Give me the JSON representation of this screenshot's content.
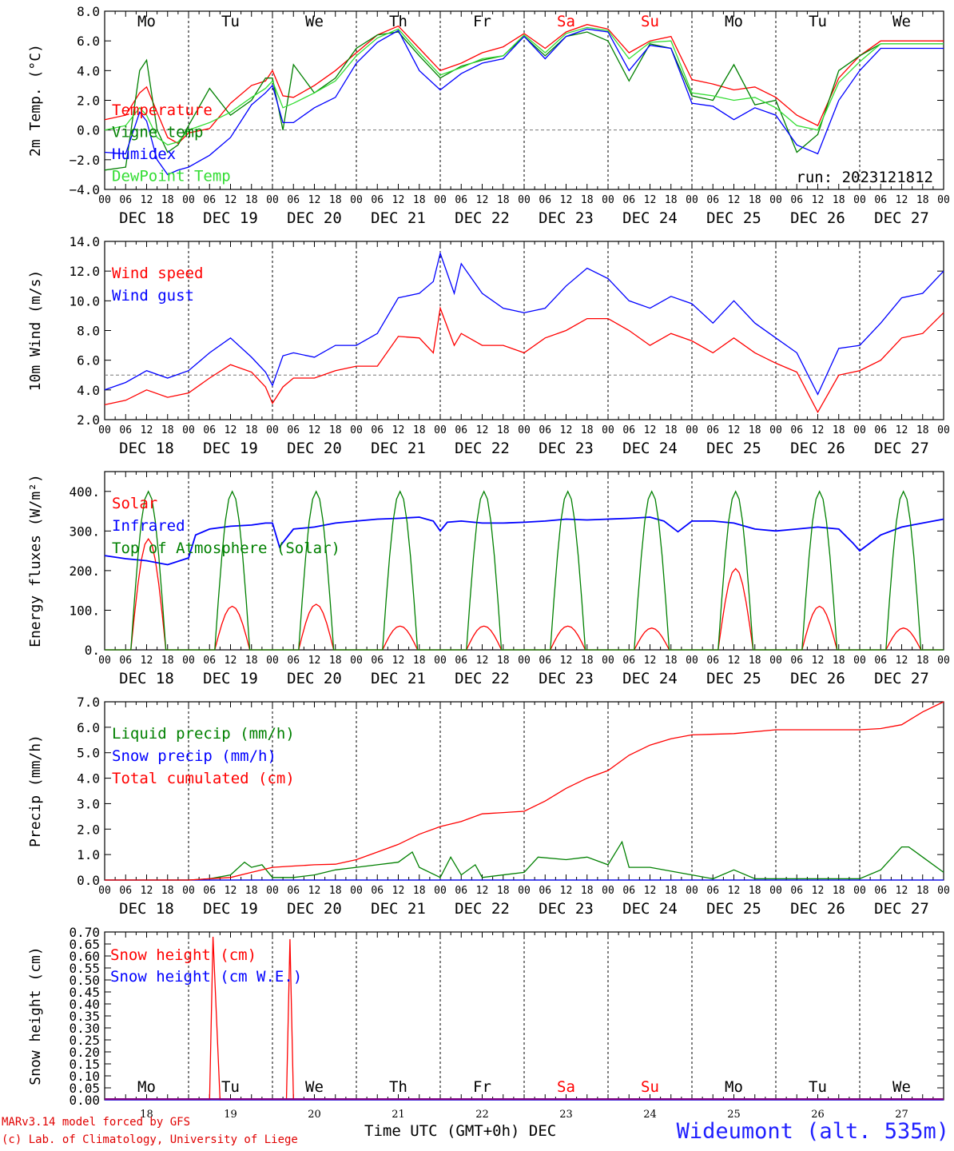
{
  "colors": {
    "red": "#ff0000",
    "green": "#008000",
    "blue": "#0000ff",
    "lightgreen": "#33dd33",
    "purple": "#800080"
  },
  "days": [
    {
      "abbr": "Mo",
      "date": "DEC 18",
      "num": "18",
      "weekend": false
    },
    {
      "abbr": "Tu",
      "date": "DEC 19",
      "num": "19",
      "weekend": false
    },
    {
      "abbr": "We",
      "date": "DEC 20",
      "num": "20",
      "weekend": false
    },
    {
      "abbr": "Th",
      "date": "DEC 21",
      "num": "21",
      "weekend": false
    },
    {
      "abbr": "Fr",
      "date": "DEC 22",
      "num": "22",
      "weekend": false
    },
    {
      "abbr": "Sa",
      "date": "DEC 23",
      "num": "23",
      "weekend": true
    },
    {
      "abbr": "Su",
      "date": "DEC 24",
      "num": "24",
      "weekend": true
    },
    {
      "abbr": "Mo",
      "date": "DEC 25",
      "num": "25",
      "weekend": false
    },
    {
      "abbr": "Tu",
      "date": "DEC 26",
      "num": "26",
      "weekend": false
    },
    {
      "abbr": "We",
      "date": "DEC 27",
      "num": "27",
      "weekend": false
    }
  ],
  "hour_ticks": [
    "00",
    "06",
    "12",
    "18"
  ],
  "final_tick": "00",
  "run_label": "run: 2023121812",
  "footer": {
    "credit_line1": "MARv3.14 model forced by GFS",
    "credit_line2": "(c) Lab. of Climatology, University of Liege",
    "xaxis_title": "Time UTC (GMT+0h) DEC",
    "station": "Wideumont (alt. 535m)"
  },
  "chart_data": [
    {
      "type": "line",
      "ylabel": "2m Temp. (°C)",
      "ylim": [
        -4,
        8
      ],
      "yticks": [
        -4,
        -2,
        0,
        2,
        4,
        6,
        8
      ],
      "ytick_labels": [
        "−4.0",
        "−2.0",
        "0.0",
        "2.0",
        "4.0",
        "6.0",
        "8.0"
      ],
      "ref_line": 0,
      "x_hours": [
        0,
        6,
        10,
        12,
        15,
        18,
        21,
        24,
        30,
        36,
        42,
        46,
        48,
        51,
        54,
        60,
        66,
        72,
        78,
        84,
        90,
        96,
        102,
        108,
        114,
        120,
        126,
        132,
        138,
        144,
        150,
        156,
        162,
        168,
        174,
        180,
        186,
        192,
        198,
        204,
        210,
        216,
        222,
        228,
        231,
        234,
        240
      ],
      "series": [
        {
          "name": "Temperature",
          "color": "red",
          "values": [
            0.7,
            1.0,
            2.5,
            2.9,
            1.2,
            -0.5,
            -0.9,
            -0.2,
            0.1,
            1.8,
            3.0,
            3.3,
            4.0,
            2.3,
            2.2,
            3.0,
            4.0,
            5.2,
            6.4,
            7.0,
            5.5,
            4.0,
            4.5,
            5.2,
            5.6,
            6.5,
            5.5,
            6.6,
            7.1,
            6.8,
            5.2,
            6.0,
            6.3,
            3.4,
            3.1,
            2.7,
            2.9,
            2.2,
            1.0,
            0.3,
            3.5,
            5.0,
            6.0,
            6.0,
            6.0,
            6.0,
            6.0
          ],
          "legend": "Temperature"
        },
        {
          "name": "Vigne temp",
          "color": "green",
          "values": [
            -2.7,
            -2.5,
            4.0,
            4.7,
            0.0,
            -1.5,
            -1.0,
            0.3,
            2.8,
            1.0,
            2.0,
            3.5,
            3.5,
            0.0,
            4.4,
            2.5,
            3.5,
            5.5,
            6.4,
            6.6,
            5.0,
            3.5,
            4.3,
            4.7,
            5.0,
            6.3,
            5.0,
            6.3,
            6.6,
            6.0,
            3.3,
            5.8,
            5.5,
            2.3,
            2.0,
            4.4,
            1.7,
            2.0,
            -1.5,
            -0.3,
            4.0,
            5.0,
            5.8,
            5.8,
            5.8,
            5.8,
            5.8
          ],
          "legend": "Vigne temp"
        },
        {
          "name": "Humidex",
          "color": "blue",
          "values": [
            -1.5,
            -1.6,
            1.2,
            0.6,
            -2.0,
            -3.0,
            -2.7,
            -2.5,
            -1.7,
            -0.5,
            1.7,
            2.5,
            3.0,
            0.5,
            0.5,
            1.5,
            2.2,
            4.5,
            5.9,
            6.7,
            4.0,
            2.7,
            3.8,
            4.5,
            4.8,
            6.3,
            4.8,
            6.3,
            6.8,
            6.6,
            4.0,
            5.7,
            5.5,
            1.8,
            1.6,
            0.7,
            1.5,
            1.0,
            -1.0,
            -1.6,
            2.0,
            4.0,
            5.5,
            5.5,
            5.5,
            5.5,
            5.5
          ],
          "legend": "Humidex"
        },
        {
          "name": "DewPoint Temp",
          "color": "lightgreen",
          "values": [
            0.0,
            0.3,
            1.5,
            1.0,
            -0.5,
            -1.0,
            -0.8,
            0.0,
            0.5,
            1.2,
            2.2,
            2.8,
            3.3,
            1.5,
            1.8,
            2.5,
            3.3,
            5.0,
            6.2,
            6.8,
            5.2,
            3.7,
            4.2,
            4.8,
            5.0,
            6.4,
            5.2,
            6.5,
            6.9,
            6.7,
            4.8,
            5.9,
            6.0,
            2.5,
            2.3,
            2.0,
            2.2,
            1.5,
            0.3,
            0.0,
            3.2,
            4.6,
            5.8,
            5.8,
            5.8,
            5.8,
            5.8
          ],
          "legend": "DewPoint Temp"
        }
      ]
    },
    {
      "type": "line",
      "ylabel": "10m Wind (m/s)",
      "ylim": [
        2,
        14
      ],
      "yticks": [
        2,
        4,
        6,
        8,
        10,
        12,
        14
      ],
      "ytick_labels": [
        "2.0",
        "4.0",
        "6.0",
        "8.0",
        "10.0",
        "12.0",
        "14.0"
      ],
      "ref_line": 5,
      "x_hours": [
        0,
        6,
        12,
        18,
        24,
        30,
        36,
        42,
        46,
        48,
        51,
        54,
        60,
        66,
        72,
        78,
        84,
        90,
        94,
        96,
        100,
        102,
        108,
        114,
        120,
        126,
        132,
        138,
        144,
        150,
        156,
        162,
        168,
        174,
        180,
        186,
        192,
        198,
        204,
        210,
        216,
        222,
        228,
        234,
        240
      ],
      "series": [
        {
          "name": "Wind speed",
          "color": "red",
          "values": [
            3.0,
            3.3,
            4.0,
            3.5,
            3.8,
            4.8,
            5.7,
            5.2,
            4.2,
            3.1,
            4.2,
            4.8,
            4.8,
            5.3,
            5.6,
            5.6,
            7.6,
            7.5,
            6.5,
            9.5,
            7.0,
            7.8,
            7.0,
            7.0,
            6.5,
            7.5,
            8.0,
            8.8,
            8.8,
            8.0,
            7.0,
            7.8,
            7.3,
            6.5,
            7.5,
            6.5,
            5.8,
            5.2,
            2.5,
            5.0,
            5.3,
            6.0,
            7.5,
            7.8,
            9.2
          ],
          "legend": "Wind speed"
        },
        {
          "name": "Wind gust",
          "color": "blue",
          "values": [
            4.0,
            4.5,
            5.3,
            4.8,
            5.3,
            6.5,
            7.5,
            6.2,
            5.2,
            4.3,
            6.3,
            6.5,
            6.2,
            7.0,
            7.0,
            7.8,
            10.2,
            10.5,
            11.3,
            13.2,
            10.5,
            12.5,
            10.5,
            9.5,
            9.2,
            9.5,
            11.0,
            12.2,
            11.5,
            10.0,
            9.5,
            10.3,
            9.8,
            8.5,
            10.0,
            8.5,
            7.5,
            6.5,
            3.7,
            6.8,
            7.0,
            8.5,
            10.2,
            10.5,
            12.0
          ],
          "legend": "Wind gust"
        }
      ]
    },
    {
      "type": "line",
      "ylabel": "Energy fluxes (W/m²)",
      "ylim": [
        0,
        450
      ],
      "yticks": [
        0,
        100,
        200,
        300,
        400
      ],
      "ytick_labels": [
        "0.",
        "100.",
        "200.",
        "300.",
        "400."
      ],
      "diurnal": true,
      "series": [
        {
          "name": "Solar",
          "color": "red",
          "peaks": [
            280,
            110,
            115,
            60,
            60,
            60,
            55,
            205,
            110,
            55
          ],
          "legend": "Solar"
        },
        {
          "name": "Infrared",
          "color": "blue",
          "x_hours": [
            0,
            6,
            12,
            18,
            24,
            26,
            30,
            36,
            42,
            46,
            48,
            50,
            54,
            60,
            66,
            72,
            78,
            84,
            90,
            94,
            96,
            98,
            102,
            108,
            114,
            120,
            126,
            132,
            138,
            144,
            150,
            156,
            160,
            164,
            168,
            174,
            180,
            186,
            192,
            198,
            204,
            210,
            214,
            216,
            222,
            228,
            234,
            240
          ],
          "values": [
            238,
            230,
            225,
            215,
            232,
            290,
            305,
            312,
            315,
            320,
            320,
            260,
            305,
            310,
            320,
            325,
            330,
            332,
            335,
            325,
            300,
            322,
            325,
            320,
            320,
            322,
            325,
            330,
            328,
            330,
            332,
            335,
            325,
            298,
            325,
            325,
            320,
            305,
            300,
            305,
            310,
            305,
            270,
            250,
            290,
            310,
            320,
            330
          ],
          "legend": "Infrared"
        },
        {
          "name": "Top of Atmosphere (Solar)",
          "color": "green",
          "peaks": [
            400,
            400,
            400,
            400,
            400,
            400,
            400,
            400,
            400,
            400
          ],
          "legend": "Top of Atmosphere (Solar)"
        }
      ]
    },
    {
      "type": "line",
      "ylabel": "Precip (mm/h)",
      "ylim": [
        0,
        7
      ],
      "yticks": [
        0,
        1,
        2,
        3,
        4,
        5,
        6,
        7
      ],
      "ytick_labels": [
        "0.0",
        "1.0",
        "2.0",
        "3.0",
        "4.0",
        "5.0",
        "6.0",
        "7.0"
      ],
      "series": [
        {
          "name": "Liquid precip (mm/h)",
          "color": "green",
          "x_hours": [
            0,
            24,
            30,
            36,
            40,
            42,
            45,
            48,
            54,
            60,
            66,
            72,
            78,
            84,
            88,
            90,
            96,
            99,
            102,
            106,
            108,
            120,
            124,
            132,
            138,
            144,
            148,
            150,
            156,
            168,
            174,
            180,
            186,
            192,
            204,
            216,
            222,
            228,
            230,
            234,
            240
          ],
          "values": [
            0,
            0,
            0.05,
            0.2,
            0.7,
            0.5,
            0.6,
            0.1,
            0.1,
            0.2,
            0.4,
            0.5,
            0.6,
            0.7,
            1.1,
            0.5,
            0.1,
            0.9,
            0.2,
            0.6,
            0.1,
            0.3,
            0.9,
            0.8,
            0.9,
            0.6,
            1.5,
            0.5,
            0.5,
            0.2,
            0.05,
            0.4,
            0.05,
            0.05,
            0.05,
            0.05,
            0.4,
            1.3,
            1.3,
            0.9,
            0.3
          ],
          "legend": "Liquid precip (mm/h)"
        },
        {
          "name": "Snow precip (mm/h)",
          "color": "blue",
          "x_hours": [
            0,
            240
          ],
          "values": [
            0,
            0
          ],
          "legend": "Snow precip (mm/h)"
        },
        {
          "name": "Total cumulated (cm)",
          "color": "red",
          "x_hours": [
            0,
            24,
            36,
            42,
            48,
            54,
            60,
            66,
            72,
            78,
            84,
            90,
            96,
            102,
            108,
            114,
            120,
            126,
            132,
            138,
            144,
            150,
            156,
            162,
            168,
            180,
            192,
            204,
            216,
            222,
            228,
            234,
            240
          ],
          "values": [
            0,
            0,
            0.1,
            0.3,
            0.5,
            0.55,
            0.6,
            0.62,
            0.8,
            1.1,
            1.4,
            1.8,
            2.1,
            2.3,
            2.6,
            2.65,
            2.7,
            3.1,
            3.6,
            4.0,
            4.3,
            4.9,
            5.3,
            5.55,
            5.7,
            5.75,
            5.9,
            5.9,
            5.9,
            5.95,
            6.1,
            6.6,
            7.0
          ],
          "legend": "Total cumulated (cm)"
        }
      ]
    },
    {
      "type": "line",
      "ylabel": "Snow height (cm)",
      "ylim": [
        0,
        0.7
      ],
      "yticks": [
        0,
        0.05,
        0.1,
        0.15,
        0.2,
        0.25,
        0.3,
        0.35,
        0.4,
        0.45,
        0.5,
        0.55,
        0.6,
        0.65,
        0.7
      ],
      "ytick_labels": [
        "0.00",
        "0.05",
        "0.10",
        "0.15",
        "0.20",
        "0.25",
        "0.30",
        "0.35",
        "0.40",
        "0.45",
        "0.50",
        "0.55",
        "0.60",
        "0.65",
        "0.70"
      ],
      "series": [
        {
          "name": "Snow height (cm)",
          "color": "red",
          "x_hours": [
            0,
            30,
            31,
            33,
            54,
            53,
            52,
            240
          ],
          "values": [
            0,
            0,
            0.68,
            0,
            0,
            0.67,
            0,
            0
          ],
          "legend": "Snow height (cm)"
        },
        {
          "name": "Snow height (cm W.E.)",
          "color": "blue",
          "x_hours": [
            0,
            240
          ],
          "values": [
            0,
            0
          ],
          "legend": "Snow height (cm W.E.)"
        }
      ]
    }
  ]
}
